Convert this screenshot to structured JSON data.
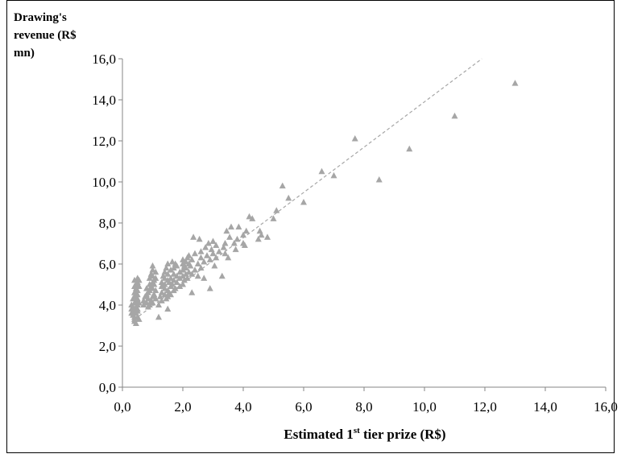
{
  "chart_data": {
    "type": "scatter",
    "ylabel_lines": [
      "Drawing's",
      "revenue (R$",
      "mn)"
    ],
    "xlabel": {
      "pre": "Estimated 1",
      "sup": "st",
      "post": " tier prize (R$)"
    },
    "xlim": [
      0,
      16
    ],
    "ylim": [
      0,
      16
    ],
    "x_ticks": [
      0,
      2,
      4,
      6,
      8,
      10,
      12,
      14,
      16
    ],
    "y_ticks": [
      0,
      2,
      4,
      6,
      8,
      10,
      12,
      14,
      16
    ],
    "x_tick_labels": [
      "0,0",
      "2,0",
      "4,0",
      "6,0",
      "8,0",
      "10,0",
      "12,0",
      "14,0",
      "16,0"
    ],
    "y_tick_labels": [
      "0,0",
      "2,0",
      "4,0",
      "6,0",
      "8,0",
      "10,0",
      "12,0",
      "14,0",
      "16,0"
    ],
    "grid": false,
    "legend": "none",
    "marker": "triangle",
    "marker_color": "#a6a6a6",
    "trendline": {
      "style": "dashed",
      "color": "#a6a6a6",
      "from": [
        0.4,
        3.3
      ],
      "to": [
        11.9,
        16.0
      ]
    },
    "points": [
      [
        0.3,
        3.8
      ],
      [
        0.3,
        4.0
      ],
      [
        0.3,
        3.6
      ],
      [
        0.35,
        3.9
      ],
      [
        0.35,
        4.3
      ],
      [
        0.35,
        3.5
      ],
      [
        0.4,
        3.2
      ],
      [
        0.4,
        3.4
      ],
      [
        0.4,
        3.7
      ],
      [
        0.4,
        4.1
      ],
      [
        0.4,
        4.4
      ],
      [
        0.4,
        4.6
      ],
      [
        0.4,
        4.9
      ],
      [
        0.4,
        5.2
      ],
      [
        0.4,
        3.3
      ],
      [
        0.45,
        3.1
      ],
      [
        0.45,
        3.6
      ],
      [
        0.45,
        3.9
      ],
      [
        0.45,
        4.2
      ],
      [
        0.45,
        4.5
      ],
      [
        0.45,
        4.8
      ],
      [
        0.45,
        5.0
      ],
      [
        0.5,
        3.4
      ],
      [
        0.5,
        3.8
      ],
      [
        0.5,
        4.0
      ],
      [
        0.5,
        4.3
      ],
      [
        0.5,
        4.7
      ],
      [
        0.5,
        5.1
      ],
      [
        0.5,
        5.3
      ],
      [
        0.5,
        3.7
      ],
      [
        0.5,
        4.5
      ],
      [
        0.55,
        3.3
      ],
      [
        0.55,
        4.1
      ],
      [
        0.55,
        4.9
      ],
      [
        0.55,
        5.2
      ],
      [
        0.7,
        4.0
      ],
      [
        0.7,
        4.2
      ],
      [
        0.75,
        4.4
      ],
      [
        0.8,
        4.1
      ],
      [
        0.8,
        4.5
      ],
      [
        0.8,
        4.8
      ],
      [
        0.85,
        3.9
      ],
      [
        0.85,
        4.3
      ],
      [
        0.85,
        4.6
      ],
      [
        0.9,
        4.0
      ],
      [
        0.9,
        4.7
      ],
      [
        0.9,
        5.0
      ],
      [
        0.9,
        5.3
      ],
      [
        0.95,
        4.2
      ],
      [
        0.95,
        4.9
      ],
      [
        0.95,
        5.5
      ],
      [
        1.0,
        4.1
      ],
      [
        1.0,
        4.4
      ],
      [
        1.0,
        4.8
      ],
      [
        1.0,
        5.1
      ],
      [
        1.0,
        5.4
      ],
      [
        1.0,
        5.7
      ],
      [
        1.0,
        5.9
      ],
      [
        1.05,
        4.5
      ],
      [
        1.05,
        5.0
      ],
      [
        1.05,
        5.2
      ],
      [
        1.1,
        4.3
      ],
      [
        1.1,
        4.7
      ],
      [
        1.1,
        5.3
      ],
      [
        1.1,
        5.6
      ],
      [
        1.2,
        3.4
      ],
      [
        1.2,
        4.0
      ],
      [
        1.25,
        4.4
      ],
      [
        1.3,
        4.6
      ],
      [
        1.3,
        4.9
      ],
      [
        1.3,
        5.1
      ],
      [
        1.3,
        4.2
      ],
      [
        1.35,
        5.4
      ],
      [
        1.4,
        4.5
      ],
      [
        1.4,
        4.8
      ],
      [
        1.4,
        5.0
      ],
      [
        1.4,
        5.3
      ],
      [
        1.4,
        5.6
      ],
      [
        1.45,
        4.3
      ],
      [
        1.45,
        5.8
      ],
      [
        1.5,
        3.8
      ],
      [
        1.5,
        4.4
      ],
      [
        1.5,
        4.7
      ],
      [
        1.5,
        5.2
      ],
      [
        1.5,
        5.5
      ],
      [
        1.5,
        6.0
      ],
      [
        1.55,
        4.6
      ],
      [
        1.55,
        5.1
      ],
      [
        1.6,
        4.5
      ],
      [
        1.6,
        4.9
      ],
      [
        1.6,
        5.3
      ],
      [
        1.6,
        5.7
      ],
      [
        1.65,
        5.0
      ],
      [
        1.65,
        6.1
      ],
      [
        1.7,
        4.7
      ],
      [
        1.7,
        5.2
      ],
      [
        1.7,
        5.5
      ],
      [
        1.7,
        5.8
      ],
      [
        1.75,
        4.8
      ],
      [
        1.75,
        6.0
      ],
      [
        1.8,
        5.1
      ],
      [
        1.8,
        5.4
      ],
      [
        1.8,
        5.9
      ],
      [
        1.9,
        4.9
      ],
      [
        1.9,
        5.3
      ],
      [
        1.9,
        5.6
      ],
      [
        2.0,
        5.0
      ],
      [
        2.0,
        5.4
      ],
      [
        2.0,
        5.7
      ],
      [
        2.0,
        6.0
      ],
      [
        2.0,
        6.2
      ],
      [
        2.05,
        5.2
      ],
      [
        2.05,
        5.9
      ],
      [
        2.1,
        5.5
      ],
      [
        2.1,
        5.8
      ],
      [
        2.1,
        6.1
      ],
      [
        2.15,
        5.3
      ],
      [
        2.15,
        6.3
      ],
      [
        2.2,
        5.6
      ],
      [
        2.2,
        6.0
      ],
      [
        2.2,
        6.4
      ],
      [
        2.25,
        5.9
      ],
      [
        2.3,
        4.6
      ],
      [
        2.3,
        5.5
      ],
      [
        2.3,
        6.2
      ],
      [
        2.35,
        7.3
      ],
      [
        2.4,
        5.7
      ],
      [
        2.4,
        6.5
      ],
      [
        2.5,
        5.4
      ],
      [
        2.5,
        6.0
      ],
      [
        2.55,
        7.2
      ],
      [
        2.6,
        5.8
      ],
      [
        2.6,
        6.3
      ],
      [
        2.6,
        6.6
      ],
      [
        2.7,
        6.1
      ],
      [
        2.7,
        5.3
      ],
      [
        2.75,
        6.8
      ],
      [
        2.8,
        6.4
      ],
      [
        2.85,
        7.0
      ],
      [
        2.9,
        4.8
      ],
      [
        2.9,
        6.2
      ],
      [
        2.95,
        6.7
      ],
      [
        3.0,
        6.5
      ],
      [
        3.0,
        7.1
      ],
      [
        3.05,
        5.9
      ],
      [
        3.1,
        6.3
      ],
      [
        3.1,
        6.9
      ],
      [
        3.2,
        6.6
      ],
      [
        3.3,
        5.4
      ],
      [
        3.35,
        6.8
      ],
      [
        3.4,
        6.5
      ],
      [
        3.4,
        7.0
      ],
      [
        3.45,
        7.6
      ],
      [
        3.5,
        6.3
      ],
      [
        3.55,
        7.3
      ],
      [
        3.6,
        7.8
      ],
      [
        3.7,
        7.0
      ],
      [
        3.75,
        6.7
      ],
      [
        3.8,
        7.2
      ],
      [
        3.85,
        7.8
      ],
      [
        4.0,
        7.0
      ],
      [
        4.0,
        7.4
      ],
      [
        4.05,
        6.9
      ],
      [
        4.1,
        7.6
      ],
      [
        4.2,
        8.3
      ],
      [
        4.3,
        8.2
      ],
      [
        4.5,
        7.2
      ],
      [
        4.55,
        7.6
      ],
      [
        4.6,
        7.4
      ],
      [
        4.8,
        7.3
      ],
      [
        5.0,
        8.2
      ],
      [
        5.1,
        8.6
      ],
      [
        5.3,
        9.8
      ],
      [
        5.5,
        9.2
      ],
      [
        6.0,
        9.0
      ],
      [
        6.6,
        10.5
      ],
      [
        7.0,
        10.3
      ],
      [
        7.7,
        12.1
      ],
      [
        8.5,
        10.1
      ],
      [
        9.5,
        11.6
      ],
      [
        11.0,
        13.2
      ],
      [
        13.0,
        14.8
      ]
    ]
  }
}
